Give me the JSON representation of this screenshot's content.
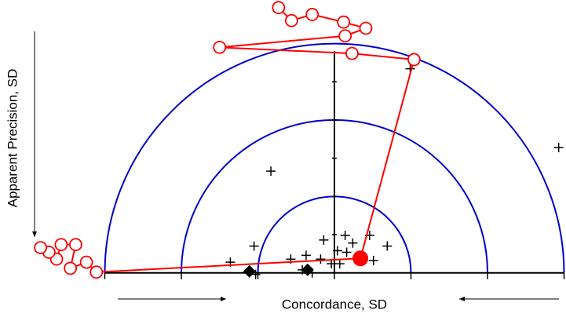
{
  "chart_data": {
    "type": "scatter",
    "xlabel": "Concordance, SD",
    "ylabel": "Apparent Precision, SD",
    "xlim": [
      -4,
      3
    ],
    "ylim": [
      -0.3,
      3.5
    ],
    "xticks": [
      -3,
      -2,
      -1,
      0,
      1,
      2,
      3
    ],
    "yticks": [
      0.5,
      1,
      1.5,
      2,
      2.5
    ],
    "reference_radii": [
      1,
      2,
      3
    ],
    "arc_color": "#0000cc",
    "series": [
      {
        "marker": "plus",
        "color": "#000000",
        "x": [
          0.99,
          2.93,
          -0.83,
          -0.14,
          0.14,
          0.46,
          -1.05,
          0.24,
          -1.36,
          -0.57,
          -0.37,
          -0.18,
          0.04,
          0.16,
          0.69,
          0.51,
          0.07,
          -0.42,
          -1.03,
          -0.29,
          -0.04
        ],
        "values": [
          2.67,
          1.64,
          1.33,
          0.43,
          0.49,
          0.49,
          0.35,
          0.39,
          0.14,
          0.18,
          0.23,
          0.18,
          0.29,
          0.27,
          0.35,
          0.16,
          0.12,
          0.04,
          -0.02,
          0,
          0.12
        ]
      },
      {
        "marker": "diamond",
        "color": "#000000",
        "x": [
          -1.11,
          -0.35
        ],
        "values": [
          0.02,
          0.04
        ]
      },
      {
        "marker": "open-circle",
        "line": true,
        "color": "#ff0000",
        "x": [
          0.34,
          1.04,
          0.23,
          -1.5,
          0.14,
          0.41,
          0.12,
          -0.29,
          -0.56,
          -0.73
        ],
        "values": [
          0.19,
          2.79,
          2.87,
          2.95,
          3.1,
          3.2,
          3.28,
          3.38,
          3.3,
          3.47
        ]
      },
      {
        "marker": "open-circle",
        "line": true,
        "color": "#ff0000",
        "x": [
          0.34,
          -3.11,
          -3.24,
          -3.45,
          -3.38,
          -3.57,
          -3.63,
          -3.73,
          -3.84
        ],
        "values": [
          0.19,
          0.01,
          0.14,
          0.06,
          0.37,
          0.37,
          0.18,
          0.27,
          0.33
        ]
      },
      {
        "marker": "dot",
        "color": "#ff0000",
        "x": [
          0.34
        ],
        "values": [
          0.19
        ]
      }
    ]
  }
}
